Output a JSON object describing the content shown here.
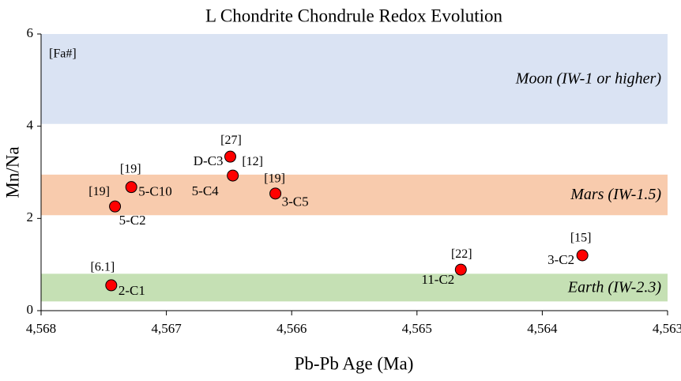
{
  "chart_data": {
    "type": "scatter",
    "title": "L Chondrite Chondrule Redox Evolution",
    "x_label": "Pb-Pb Age (Ma)",
    "y_label": "Mn/Na",
    "annotation": "[Fa#]",
    "xlim": [
      4568,
      4563
    ],
    "ylim": [
      0,
      6
    ],
    "xticks": [
      {
        "value": 4568,
        "label": "4,568"
      },
      {
        "value": 4567,
        "label": "4,567"
      },
      {
        "value": 4566,
        "label": "4,566"
      },
      {
        "value": 4565,
        "label": "4,565"
      },
      {
        "value": 4564,
        "label": "4,564"
      },
      {
        "value": 4563,
        "label": "4,563"
      }
    ],
    "yticks": [
      0,
      2,
      4,
      6
    ],
    "bands": [
      {
        "label": "Moon (IW-1 or higher)",
        "ymin": 4.05,
        "ymax": 6,
        "color": "#dae3f3"
      },
      {
        "label": "Mars (IW-1.5)",
        "ymin": 2.07,
        "ymax": 2.95,
        "color": "#f8cbad"
      },
      {
        "label": "Earth (IW-2.3)",
        "ymin": 0.2,
        "ymax": 0.8,
        "color": "#c5e0b4"
      }
    ],
    "series": [
      {
        "color": "#ff0000",
        "x": [
          4567.44,
          4567.41,
          4567.28,
          4566.49,
          4566.47,
          4566.13,
          4564.65,
          4563.68
        ],
        "values": [
          0.55,
          2.26,
          2.68,
          3.34,
          2.93,
          2.54,
          0.89,
          1.2
        ],
        "point_labels": [
          "2-C1",
          "5-C2",
          "5-C10",
          "D-C3",
          "5-C4",
          "3-C5",
          "11-C2",
          "3-C2"
        ],
        "fa_labels": [
          "[6.1]",
          "[19]",
          "[19]",
          "[27]",
          "[12]",
          "[19]",
          "[22]",
          "[15]"
        ]
      }
    ]
  }
}
